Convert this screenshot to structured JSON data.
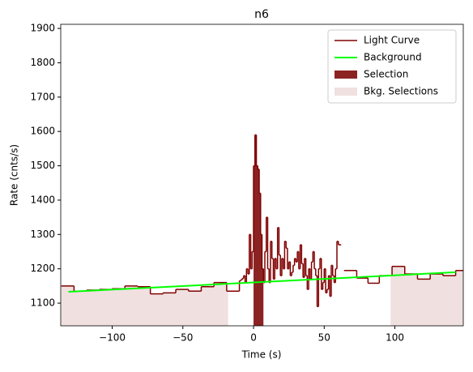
{
  "chart_data": {
    "type": "step",
    "title": "n6",
    "xlabel": "Time (s)",
    "ylabel": "Rate (cnts/s)",
    "xlim": [
      -136.4,
      148.4
    ],
    "ylim": [
      1034,
      1912
    ],
    "xticks": [
      {
        "value": -100,
        "label": "−100"
      },
      {
        "value": -50,
        "label": "−50"
      },
      0,
      50,
      100
    ],
    "yticks": [
      1100,
      1200,
      1300,
      1400,
      1500,
      1600,
      1700,
      1800,
      1900
    ],
    "series": [
      {
        "name": "Light Curve",
        "color": "#800000",
        "bin_edges": [
          -136,
          -127,
          -118,
          -109,
          -100,
          -91,
          -82,
          -73,
          -64,
          -55,
          -46,
          -37,
          -28,
          -19,
          -10,
          -9,
          -8,
          -7,
          -6,
          -5,
          -4,
          -3,
          -2,
          -1,
          0,
          1,
          2,
          3,
          4,
          5,
          6,
          7,
          8,
          9,
          10,
          11,
          12,
          13,
          14,
          15,
          16,
          17,
          18,
          19,
          20,
          21,
          22,
          23,
          24,
          25,
          26,
          27,
          28,
          29,
          30,
          31,
          32,
          33,
          34,
          35,
          36,
          37,
          38,
          39,
          40,
          41,
          42,
          43,
          44,
          45,
          46,
          47,
          48,
          49,
          50,
          51,
          52,
          53,
          54,
          55,
          56,
          57,
          58,
          59,
          60,
          61,
          62,
          64,
          73,
          81,
          89,
          98,
          107,
          116,
          125,
          134,
          143,
          149
        ],
        "values": [
          1150,
          1135,
          1138,
          1140,
          1142,
          1150,
          1148,
          1127,
          1130,
          1140,
          1135,
          1148,
          1160,
          1135,
          1165,
          1168,
          1172,
          1180,
          1160,
          1200,
          1185,
          1300,
          1200,
          1250,
          1500,
          1590,
          1500,
          1490,
          1420,
          1300,
          1200,
          1160,
          1250,
          1350,
          1200,
          1160,
          1280,
          1230,
          1170,
          1230,
          1200,
          1320,
          1240,
          1180,
          1230,
          1200,
          1280,
          1260,
          1200,
          1220,
          1180,
          1190,
          1210,
          1230,
          1220,
          1250,
          1200,
          1270,
          1215,
          1175,
          1230,
          1180,
          1140,
          1200,
          1170,
          1220,
          1250,
          1200,
          1180,
          1090,
          1200,
          1230,
          1140,
          1160,
          1200,
          1130,
          1140,
          1180,
          1120,
          1210,
          1180,
          1160,
          1200,
          1280,
          1270,
          1270,
          null,
          1195,
          1173,
          1158,
          1180,
          1207,
          1185,
          1170,
          1185,
          1180,
          1195
        ]
      },
      {
        "name": "Background",
        "color": "#00ff00",
        "x": [
          -131,
          143
        ],
        "values": [
          1133,
          1190
        ]
      },
      {
        "name": "Selection",
        "color": "#8b2323",
        "range": [
          0,
          7
        ]
      },
      {
        "name": "Bkg. Selections",
        "color": "#f0e0e0",
        "ranges": [
          [
            -136.4,
            -18
          ],
          [
            97,
            148.4
          ]
        ]
      }
    ],
    "legend": "upper right"
  }
}
